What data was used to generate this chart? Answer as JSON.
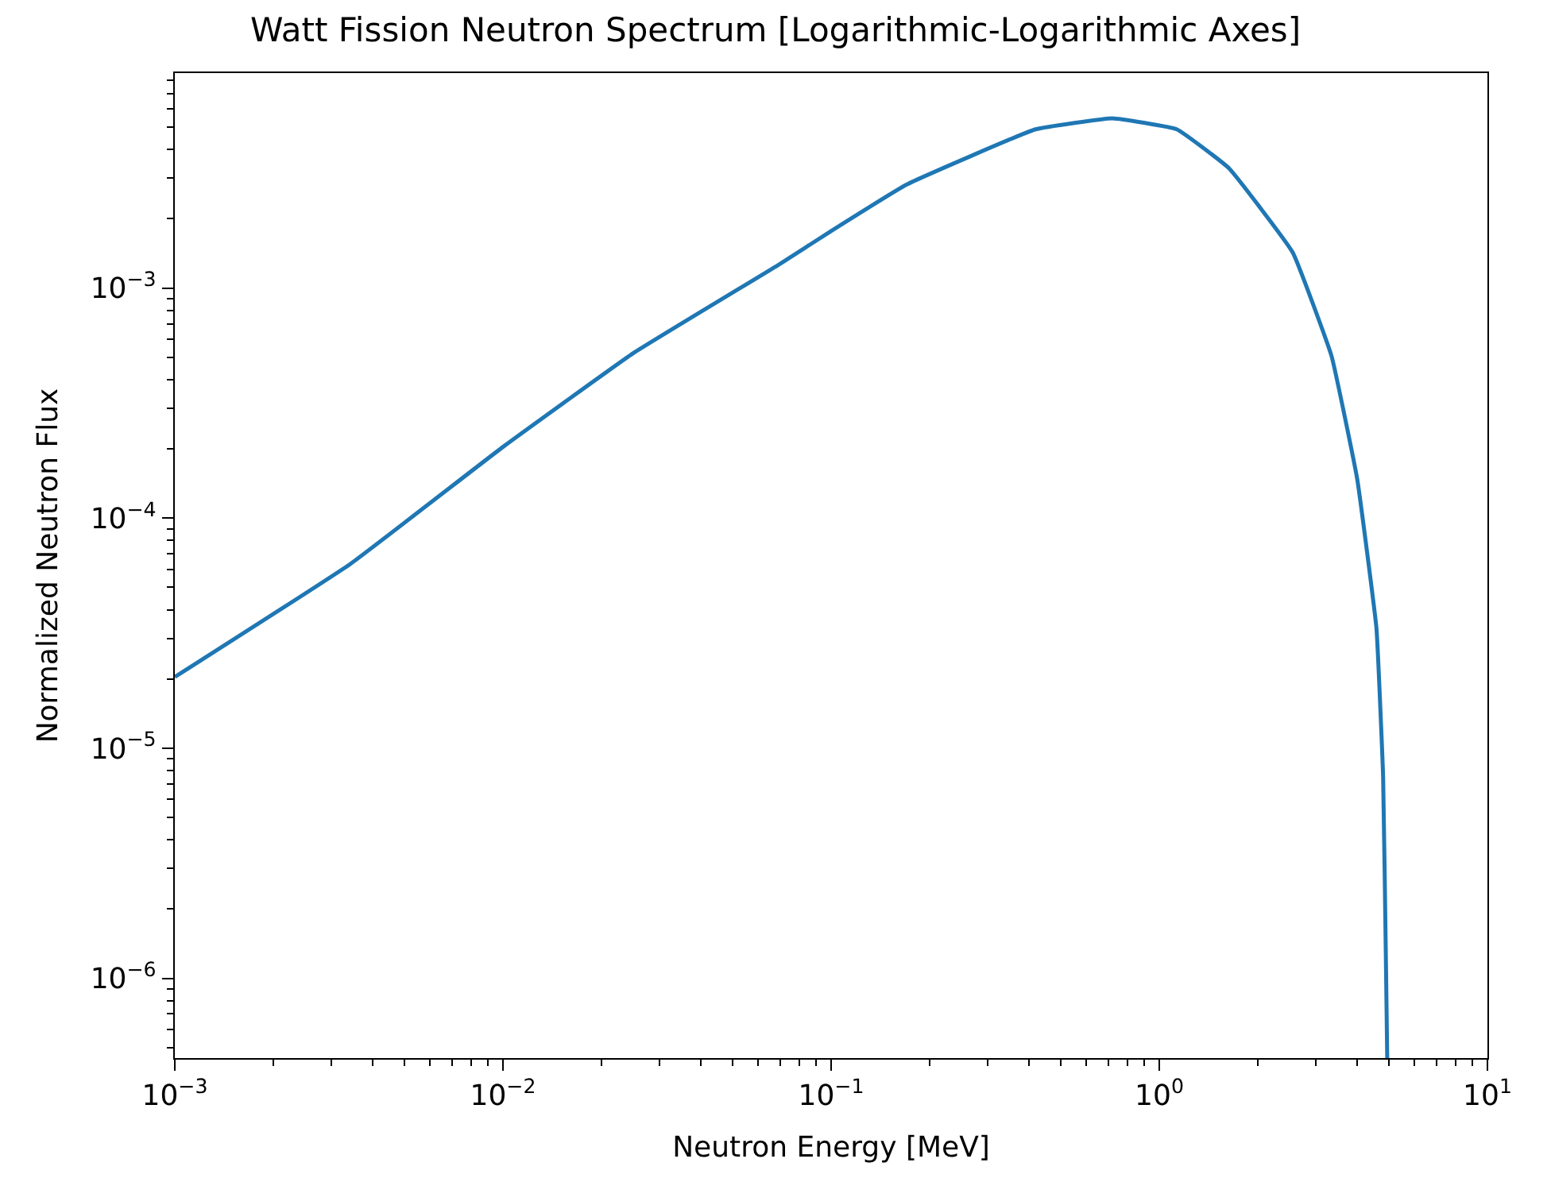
{
  "chart_data": {
    "type": "line",
    "title": "Watt Fission Neutron Spectrum [Logarithmic-Logarithmic Axes]",
    "xlabel": "Neutron Energy [MeV]",
    "ylabel": "Normalized Neutron Flux",
    "log": "xy",
    "grid": false,
    "marker": "none",
    "line_style": "solid",
    "xlim": [
      0.001,
      10
    ],
    "ylim": [
      4.5e-07,
      0.0086
    ],
    "xticks": [
      {
        "value": 0.001,
        "label": "10$^{−3}$"
      },
      {
        "value": 0.01,
        "label": "10$^{−2}$"
      },
      {
        "value": 0.1,
        "label": "10$^{−1}$"
      },
      {
        "value": 1,
        "label": "10$^{0}$"
      },
      {
        "value": 10,
        "label": "10$^{1}$"
      }
    ],
    "yticks": [
      {
        "value": 1e-06,
        "label": "10$^{−6}$"
      },
      {
        "value": 1e-05,
        "label": "10$^{−5}$"
      },
      {
        "value": 0.0001,
        "label": "10$^{−4}$"
      },
      {
        "value": 0.001,
        "label": "10$^{−3}$"
      }
    ],
    "series": [
      {
        "color": "#1f77b4",
        "x": [
          0.001,
          0.00344,
          0.01,
          0.025,
          0.069,
          0.1,
          0.17,
          0.42,
          0.72,
          1.13,
          1.63,
          2.55,
          3.35,
          4.01,
          4.59,
          4.81,
          4.91,
          4.95
        ],
        "values": [
          2.04e-05,
          6.35e-05,
          0.000204,
          0.000522,
          0.00126,
          0.00177,
          0.00282,
          0.0049,
          0.00547,
          0.0049,
          0.00332,
          0.00143,
          0.000506,
          0.000148,
          3.32e-05,
          7.5e-06,
          1.07e-06,
          4.5e-07
        ]
      }
    ]
  }
}
